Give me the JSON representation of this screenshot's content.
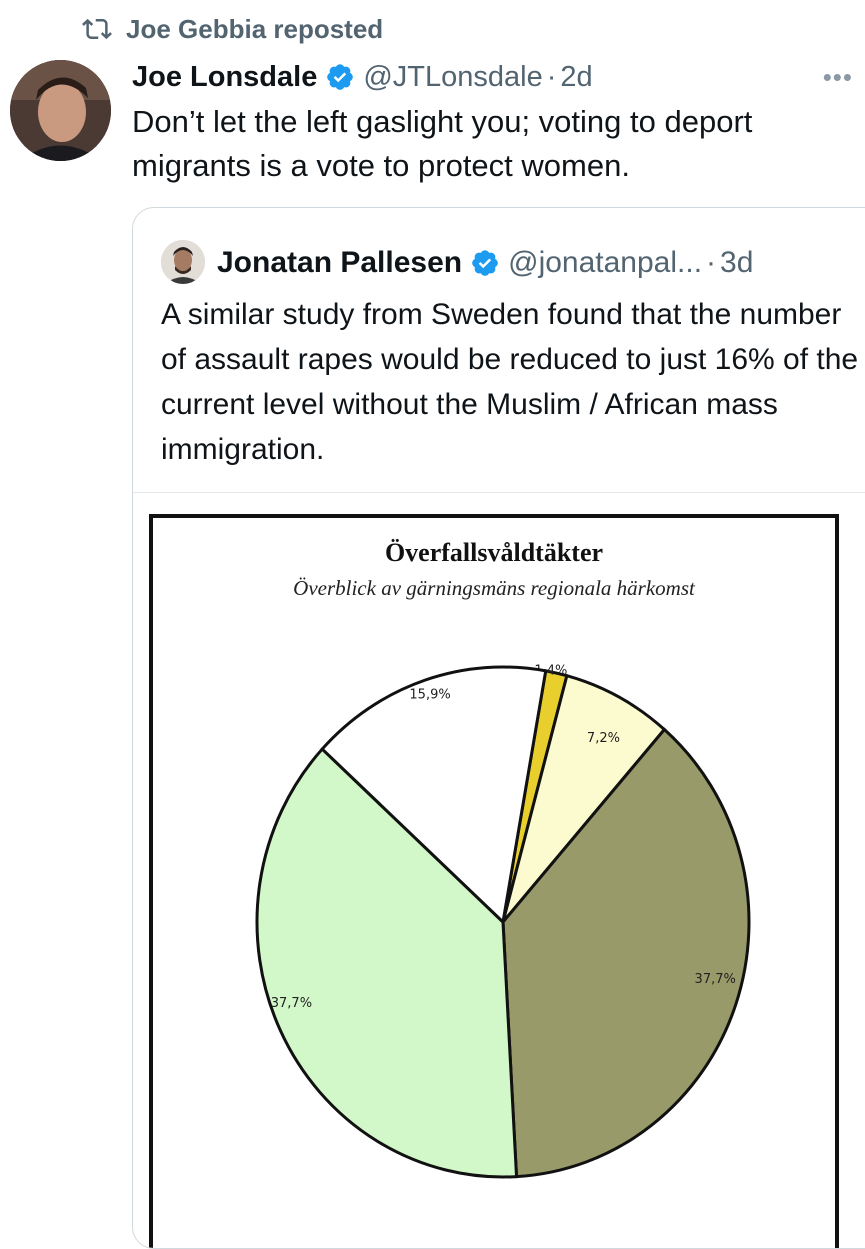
{
  "repost": {
    "label": "Joe Gebbia reposted",
    "icon": "repost-icon"
  },
  "tweet": {
    "author_name": "Joe Lonsdale",
    "handle": "@JTLonsdale",
    "separator": "·",
    "age": "2d",
    "more_label": "•••",
    "text": "Don’t let the left gaslight you; voting to deport migrants is a vote to protect women."
  },
  "quoted": {
    "author_name": "Jonatan Pallesen",
    "handle": "@jonatanpal...",
    "separator": "·",
    "age": "3d",
    "text": "A similar study from Sweden found that the number of assault rapes would be reduced to just 16% of the current level without the Muslim / African mass immigration."
  },
  "colors": {
    "verified": "#1d9bf0",
    "secondary_text": "#536471",
    "border": "#cfd9de"
  },
  "chart_data": {
    "type": "pie",
    "title": "Överfallsvåldtäkter",
    "subtitle": "Överblick av gärningsmäns regionala härkomst",
    "slices": [
      {
        "label": "1,4%",
        "value": 1.4,
        "color": "#e8cf2e"
      },
      {
        "label": "7,2%",
        "value": 7.2,
        "color": "#fbfbcf"
      },
      {
        "label": "37,7%",
        "value": 37.7,
        "color": "#999a6a"
      },
      {
        "label": "37,7%",
        "value": 37.7,
        "color": "#d2f8c9"
      },
      {
        "label": "15,9%",
        "value": 15.9,
        "color": "#ffffff"
      }
    ]
  }
}
